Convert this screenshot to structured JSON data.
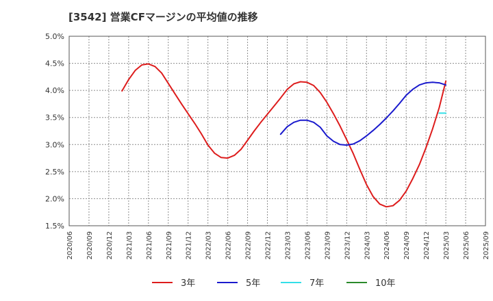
{
  "chart_data": {
    "type": "line",
    "title": "[3542]  営業CFマージンの平均値の推移",
    "xlabel": "",
    "ylabel": "",
    "ylim": [
      1.5,
      5.0
    ],
    "yticks": [
      "5.0%",
      "4.5%",
      "4.0%",
      "3.5%",
      "3.0%",
      "2.5%",
      "2.0%",
      "1.5%"
    ],
    "ytick_values": [
      5.0,
      4.5,
      4.0,
      3.5,
      3.0,
      2.5,
      2.0,
      1.5
    ],
    "x_range": [
      "2020/06",
      "2025/09"
    ],
    "x_ticks": [
      "2020/06",
      "2020/09",
      "2020/12",
      "2021/03",
      "2021/06",
      "2021/09",
      "2021/12",
      "2022/03",
      "2022/06",
      "2022/09",
      "2022/12",
      "2023/03",
      "2023/06",
      "2023/09",
      "2023/12",
      "2024/03",
      "2024/06",
      "2024/09",
      "2024/12",
      "2025/03",
      "2025/06",
      "2025/09"
    ],
    "grid": true,
    "legend_position": "bottom",
    "series": [
      {
        "name": "3年",
        "color": "#dd1c1c",
        "x": [
          "2021/02",
          "2021/03",
          "2021/04",
          "2021/05",
          "2021/06",
          "2021/07",
          "2021/08",
          "2021/09",
          "2021/10",
          "2021/11",
          "2021/12",
          "2022/01",
          "2022/02",
          "2022/03",
          "2022/04",
          "2022/05",
          "2022/06",
          "2022/07",
          "2022/08",
          "2022/09",
          "2022/10",
          "2022/11",
          "2022/12",
          "2023/01",
          "2023/02",
          "2023/03",
          "2023/04",
          "2023/05",
          "2023/06",
          "2023/07",
          "2023/08",
          "2023/09",
          "2023/10",
          "2023/11",
          "2023/12",
          "2024/01",
          "2024/02",
          "2024/03",
          "2024/04",
          "2024/05",
          "2024/06",
          "2024/07",
          "2024/08",
          "2024/09",
          "2024/10",
          "2024/11",
          "2024/12",
          "2025/01",
          "2025/02",
          "2025/03"
        ],
        "values": [
          3.99,
          4.2,
          4.37,
          4.47,
          4.49,
          4.44,
          4.32,
          4.13,
          3.94,
          3.75,
          3.57,
          3.39,
          3.2,
          2.99,
          2.84,
          2.76,
          2.75,
          2.8,
          2.91,
          3.08,
          3.25,
          3.41,
          3.56,
          3.71,
          3.86,
          4.02,
          4.12,
          4.16,
          4.15,
          4.09,
          3.96,
          3.78,
          3.57,
          3.34,
          3.09,
          2.83,
          2.54,
          2.26,
          2.04,
          1.9,
          1.85,
          1.87,
          1.97,
          2.14,
          2.37,
          2.63,
          2.94,
          3.29,
          3.68,
          4.17
        ]
      },
      {
        "name": "5年",
        "color": "#1a1acd",
        "x": [
          "2023/02",
          "2023/03",
          "2023/04",
          "2023/05",
          "2023/06",
          "2023/07",
          "2023/08",
          "2023/09",
          "2023/10",
          "2023/11",
          "2023/12",
          "2024/01",
          "2024/02",
          "2024/03",
          "2024/04",
          "2024/05",
          "2024/06",
          "2024/07",
          "2024/08",
          "2024/09",
          "2024/10",
          "2024/11",
          "2024/12",
          "2025/01",
          "2025/02",
          "2025/03"
        ],
        "values": [
          3.19,
          3.33,
          3.41,
          3.45,
          3.45,
          3.41,
          3.32,
          3.16,
          3.06,
          3.0,
          2.99,
          3.01,
          3.07,
          3.16,
          3.26,
          3.37,
          3.49,
          3.62,
          3.76,
          3.91,
          4.02,
          4.1,
          4.14,
          4.15,
          4.14,
          4.1
        ]
      },
      {
        "name": "7年",
        "color": "#33dfe8",
        "x": [
          "2025/02",
          "2025/03"
        ],
        "values": [
          3.58,
          3.58
        ]
      },
      {
        "name": "10年",
        "color": "#2a8a2a",
        "x": [],
        "values": []
      }
    ]
  }
}
